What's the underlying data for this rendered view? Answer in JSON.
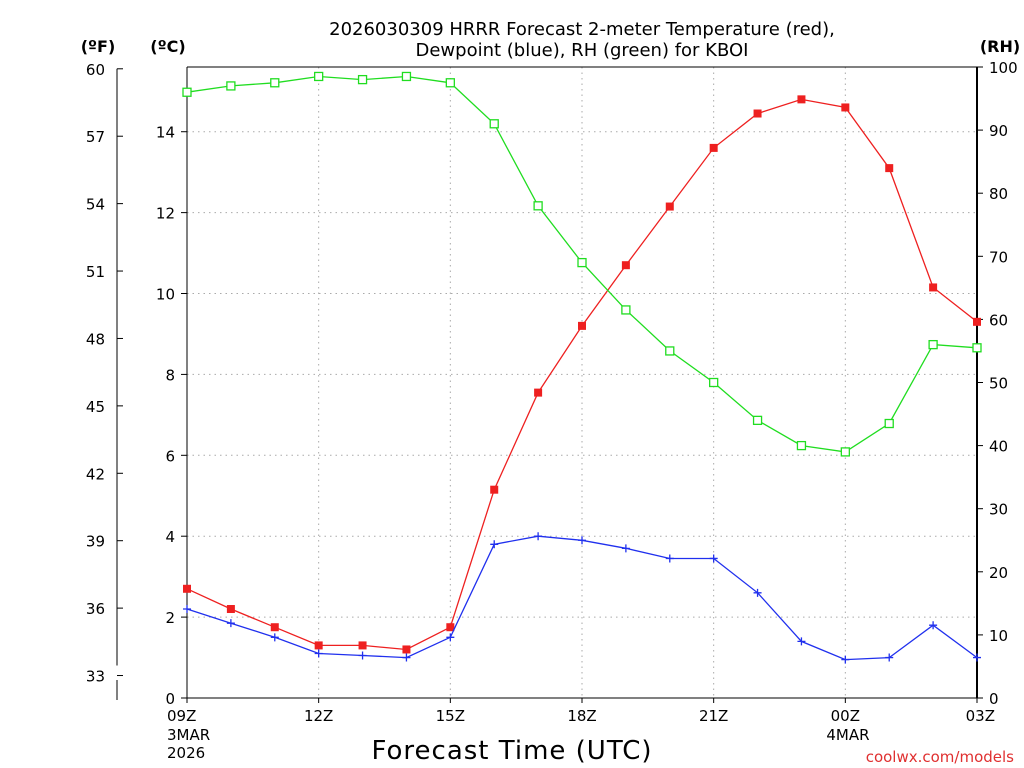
{
  "chart_data": {
    "type": "line",
    "title_lines": [
      "2026030309 HRRR Forecast 2-meter Temperature (red),",
      "Dewpoint (blue), RH (green) for KBOI"
    ],
    "xlabel": "Forecast Time (UTC)",
    "unit_labels": {
      "fahrenheit": "(ºF)",
      "celsius": "(ºC)",
      "rh": "(RH)"
    },
    "credit": "coolwx.com/models",
    "x_hours": [
      0,
      1,
      2,
      3,
      4,
      5,
      6,
      7,
      8,
      9,
      10,
      11,
      12,
      13,
      14,
      15,
      16,
      17,
      18
    ],
    "xlim": [
      0,
      18
    ],
    "x_ticks": [
      {
        "hour": 0,
        "label": "09Z",
        "sub": [
          "3MAR",
          "2026"
        ]
      },
      {
        "hour": 3,
        "label": "12Z",
        "sub": []
      },
      {
        "hour": 6,
        "label": "15Z",
        "sub": []
      },
      {
        "hour": 9,
        "label": "18Z",
        "sub": []
      },
      {
        "hour": 12,
        "label": "21Z",
        "sub": []
      },
      {
        "hour": 15,
        "label": "00Z",
        "sub": [
          "4MAR"
        ]
      },
      {
        "hour": 18,
        "label": "03Z",
        "sub": []
      }
    ],
    "left_axis_c": {
      "range": [
        0,
        15.6
      ],
      "ticks": [
        0,
        2,
        4,
        6,
        8,
        10,
        12,
        14
      ]
    },
    "left_axis_f": {
      "ticks": [
        33,
        36,
        39,
        42,
        45,
        48,
        51,
        54,
        57,
        60
      ]
    },
    "right_axis_rh": {
      "range": [
        0,
        100
      ],
      "ticks": [
        0,
        10,
        20,
        30,
        40,
        50,
        60,
        70,
        80,
        90,
        100
      ]
    },
    "grid": true,
    "series": [
      {
        "name": "Temperature",
        "axis": "celsius",
        "color": "#ee2020",
        "marker": "filled-square",
        "values": [
          2.7,
          2.2,
          1.75,
          1.3,
          1.3,
          1.2,
          1.75,
          5.15,
          7.55,
          9.2,
          10.7,
          12.15,
          13.6,
          14.45,
          14.8,
          14.6,
          13.1,
          10.15,
          9.3
        ]
      },
      {
        "name": "Dewpoint",
        "axis": "celsius",
        "color": "#2030ee",
        "marker": "plus",
        "values": [
          2.2,
          1.85,
          1.5,
          1.1,
          1.05,
          1.0,
          1.5,
          3.8,
          4.0,
          3.9,
          3.7,
          3.45,
          3.45,
          2.6,
          1.4,
          0.95,
          1.0,
          1.8,
          1.0
        ]
      },
      {
        "name": "RH",
        "axis": "rh",
        "color": "#20dd20",
        "marker": "open-square",
        "values": [
          96,
          97,
          97.5,
          98.5,
          98,
          98.5,
          97.5,
          91,
          78,
          69,
          61.5,
          55,
          50,
          44,
          40,
          39,
          43.5,
          56,
          55.5
        ]
      }
    ]
  }
}
